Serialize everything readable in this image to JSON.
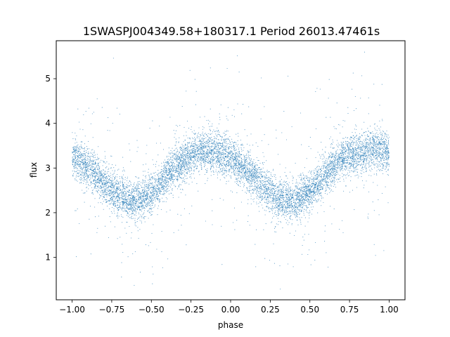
{
  "chart_data": {
    "type": "scatter",
    "title": "1SWASPJ004349.58+180317.1 Period 26013.47461s",
    "xlabel": "phase",
    "ylabel": "flux",
    "xlim": [
      -1.1,
      1.1
    ],
    "ylim": [
      0.05,
      5.85
    ],
    "xticks": [
      -1.0,
      -0.75,
      -0.5,
      -0.25,
      0.0,
      0.25,
      0.5,
      0.75,
      1.0
    ],
    "xtick_labels": [
      "−1.00",
      "−0.75",
      "−0.50",
      "−0.25",
      "0.00",
      "0.25",
      "0.50",
      "0.75",
      "1.00"
    ],
    "yticks": [
      1,
      2,
      3,
      4,
      5
    ],
    "ytick_labels": [
      "1",
      "2",
      "3",
      "4",
      "5"
    ],
    "grid": false,
    "marker_color": "#1f77b4",
    "series": [
      {
        "x": [
          -1.0,
          -0.9,
          -0.8,
          -0.7,
          -0.6,
          -0.5,
          -0.4,
          -0.3,
          -0.2,
          -0.1,
          0.0,
          0.1,
          0.2,
          0.3,
          0.4,
          0.5,
          0.6,
          0.7,
          0.8,
          0.9,
          1.0
        ],
        "y": [
          3.3,
          3.0,
          2.65,
          2.35,
          2.25,
          2.4,
          2.85,
          3.2,
          3.35,
          3.4,
          3.25,
          2.95,
          2.6,
          2.3,
          2.25,
          2.45,
          2.85,
          3.2,
          3.35,
          3.4,
          3.35
        ]
      }
    ]
  }
}
